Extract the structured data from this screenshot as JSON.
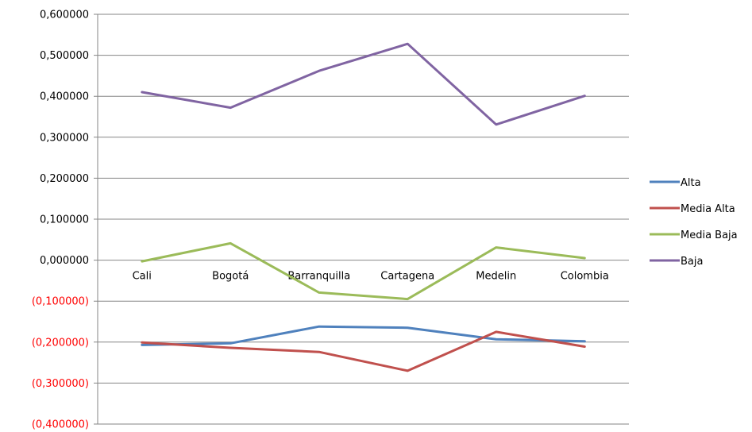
{
  "chart_data": {
    "type": "line",
    "categories": [
      "Cali",
      "Bogotá",
      "Barranquilla",
      "Cartagena",
      "Medelin",
      "Colombia"
    ],
    "series": [
      {
        "name": "Alta",
        "color": "#4F81BD",
        "values": [
          -0.207,
          -0.203,
          -0.162,
          -0.165,
          -0.193,
          -0.198
        ]
      },
      {
        "name": "Media Alta",
        "color": "#C0504D",
        "values": [
          -0.201,
          -0.214,
          -0.224,
          -0.27,
          -0.175,
          -0.211
        ]
      },
      {
        "name": "Media Baja",
        "color": "#9BBB59",
        "values": [
          -0.003,
          0.041,
          -0.079,
          -0.095,
          0.031,
          0.005
        ]
      },
      {
        "name": "Baja",
        "color": "#8064A2",
        "values": [
          0.41,
          0.372,
          0.462,
          0.528,
          0.331,
          0.401
        ]
      }
    ],
    "y_ticks": [
      0.6,
      0.5,
      0.4,
      0.3,
      0.2,
      0.1,
      0.0,
      -0.1,
      -0.2,
      -0.3,
      -0.4
    ],
    "y_tick_labels": [
      "0,600000",
      "0,500000",
      "0,400000",
      "0,300000",
      "0,200000",
      "0,100000",
      "0,000000",
      "(0,100000)",
      "(0,200000)",
      "(0,300000)",
      "(0,400000)"
    ],
    "ylim": [
      -0.4,
      0.6
    ],
    "negative_label_color": "#FF0000",
    "grid": true,
    "legend_position": "right",
    "title": "",
    "xlabel": "",
    "ylabel": ""
  }
}
